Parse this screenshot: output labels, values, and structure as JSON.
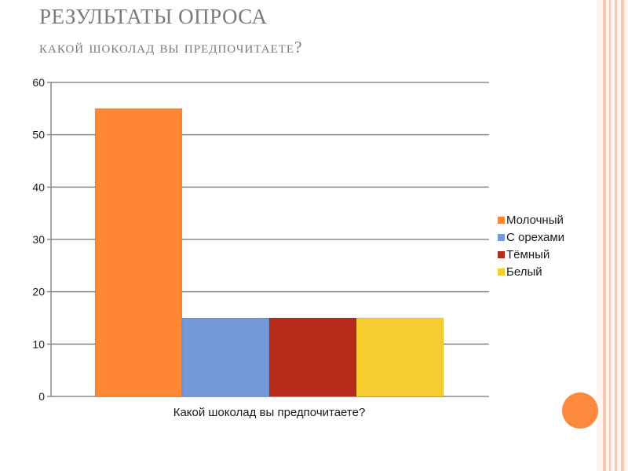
{
  "slide": {
    "title": "РЕЗУЛЬТАТЫ ОПРОСА",
    "subtitle": "какой шоколад вы предпочитаете?"
  },
  "colors": {
    "accent": "#fb8a3c",
    "title_text": "#7a7a7a",
    "border_stripes": "#f6c9b3"
  },
  "chart_data": {
    "type": "bar",
    "categories": [
      "Какой шоколад вы предпочитаете?"
    ],
    "series": [
      {
        "name": "Молочный",
        "values": [
          55
        ],
        "color": "#fd8733"
      },
      {
        "name": "С орехами",
        "values": [
          15
        ],
        "color": "#7399d9"
      },
      {
        "name": "Тёмный",
        "values": [
          15
        ],
        "color": "#b52a18"
      },
      {
        "name": "Белый",
        "values": [
          15
        ],
        "color": "#f5cd2e"
      }
    ],
    "xlabel": "Какой шоколад вы предпочитаете?",
    "ylabel": "",
    "ylim": [
      0,
      60
    ],
    "yticks": [
      "0",
      "10",
      "20",
      "30",
      "40",
      "50",
      "60"
    ],
    "grid": true,
    "legend": "right"
  }
}
